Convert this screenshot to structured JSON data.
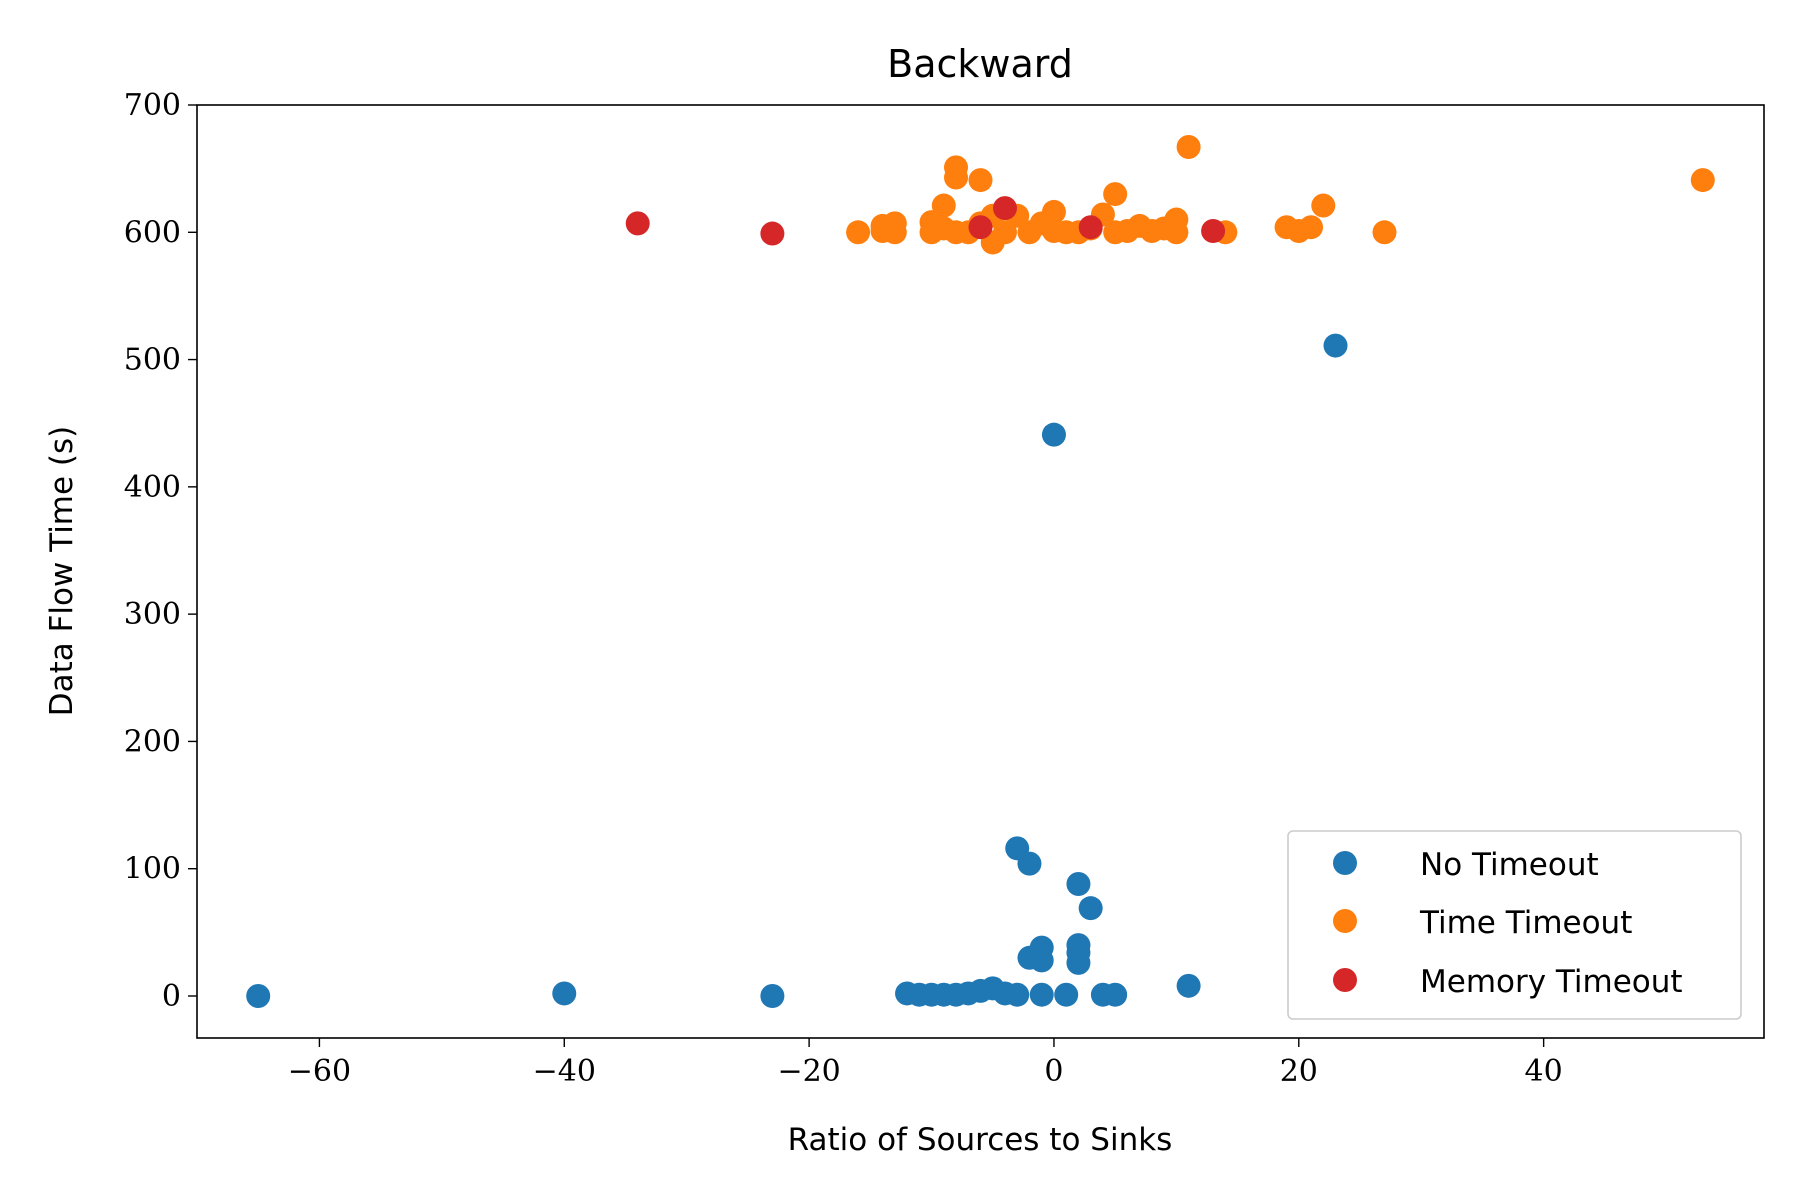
{
  "chart_data": {
    "type": "scatter",
    "title": "Backward",
    "xlabel": "Ratio of Sources to Sinks",
    "ylabel": "Data Flow Time (s)",
    "xlim": [
      -70,
      58
    ],
    "ylim": [
      -33,
      700
    ],
    "xticks": [
      -60,
      -40,
      -20,
      0,
      20,
      40
    ],
    "xtick_labels": [
      "−60",
      "−40",
      "−20",
      "0",
      "20",
      "40"
    ],
    "yticks": [
      0,
      100,
      200,
      300,
      400,
      500,
      600,
      700
    ],
    "ytick_labels": [
      "0",
      "100",
      "200",
      "300",
      "400",
      "500",
      "600",
      "700"
    ],
    "grid": false,
    "legend_position": "bottom-right",
    "series": [
      {
        "name": "No Timeout",
        "color": "#1f77b4",
        "points": [
          [
            -65,
            0
          ],
          [
            -40,
            2
          ],
          [
            -23,
            0
          ],
          [
            -12,
            2
          ],
          [
            -11,
            1
          ],
          [
            -10,
            1
          ],
          [
            -9,
            1
          ],
          [
            -8,
            1
          ],
          [
            -7,
            2
          ],
          [
            -6,
            4
          ],
          [
            -5,
            6
          ],
          [
            -4,
            2
          ],
          [
            -3,
            1
          ],
          [
            -3,
            116
          ],
          [
            -2,
            104
          ],
          [
            -2,
            30
          ],
          [
            -1,
            38
          ],
          [
            -1,
            28
          ],
          [
            -1,
            1
          ],
          [
            1,
            1
          ],
          [
            2,
            88
          ],
          [
            2,
            40
          ],
          [
            2,
            34
          ],
          [
            2,
            26
          ],
          [
            3,
            69
          ],
          [
            4,
            1
          ],
          [
            5,
            1
          ],
          [
            11,
            8
          ],
          [
            0,
            441
          ],
          [
            23,
            511
          ]
        ]
      },
      {
        "name": "Time Timeout",
        "color": "#ff7f0e",
        "points": [
          [
            -16,
            600
          ],
          [
            -14,
            601
          ],
          [
            -14,
            605
          ],
          [
            -13,
            600
          ],
          [
            -13,
            607
          ],
          [
            -10,
            600
          ],
          [
            -10,
            608
          ],
          [
            -9,
            603
          ],
          [
            -9,
            621
          ],
          [
            -8,
            600
          ],
          [
            -8,
            643
          ],
          [
            -8,
            651
          ],
          [
            -7,
            600
          ],
          [
            -6,
            641
          ],
          [
            -6,
            607
          ],
          [
            -5,
            592
          ],
          [
            -5,
            613
          ],
          [
            -4,
            600
          ],
          [
            -3,
            613
          ],
          [
            -2,
            600
          ],
          [
            -1,
            607
          ],
          [
            0,
            601
          ],
          [
            0,
            616
          ],
          [
            1,
            600
          ],
          [
            2,
            600
          ],
          [
            3,
            603
          ],
          [
            4,
            614
          ],
          [
            5,
            600
          ],
          [
            5,
            630
          ],
          [
            6,
            601
          ],
          [
            7,
            605
          ],
          [
            8,
            601
          ],
          [
            9,
            603
          ],
          [
            10,
            600
          ],
          [
            10,
            610
          ],
          [
            11,
            667
          ],
          [
            14,
            600
          ],
          [
            19,
            604
          ],
          [
            20,
            601
          ],
          [
            21,
            604
          ],
          [
            22,
            621
          ],
          [
            27,
            600
          ],
          [
            53,
            641
          ]
        ]
      },
      {
        "name": "Memory Timeout",
        "color": "#d62728",
        "points": [
          [
            -34,
            607
          ],
          [
            -23,
            599
          ],
          [
            -6,
            604
          ],
          [
            -4,
            619
          ],
          [
            3,
            604
          ],
          [
            13,
            601
          ]
        ]
      }
    ]
  }
}
